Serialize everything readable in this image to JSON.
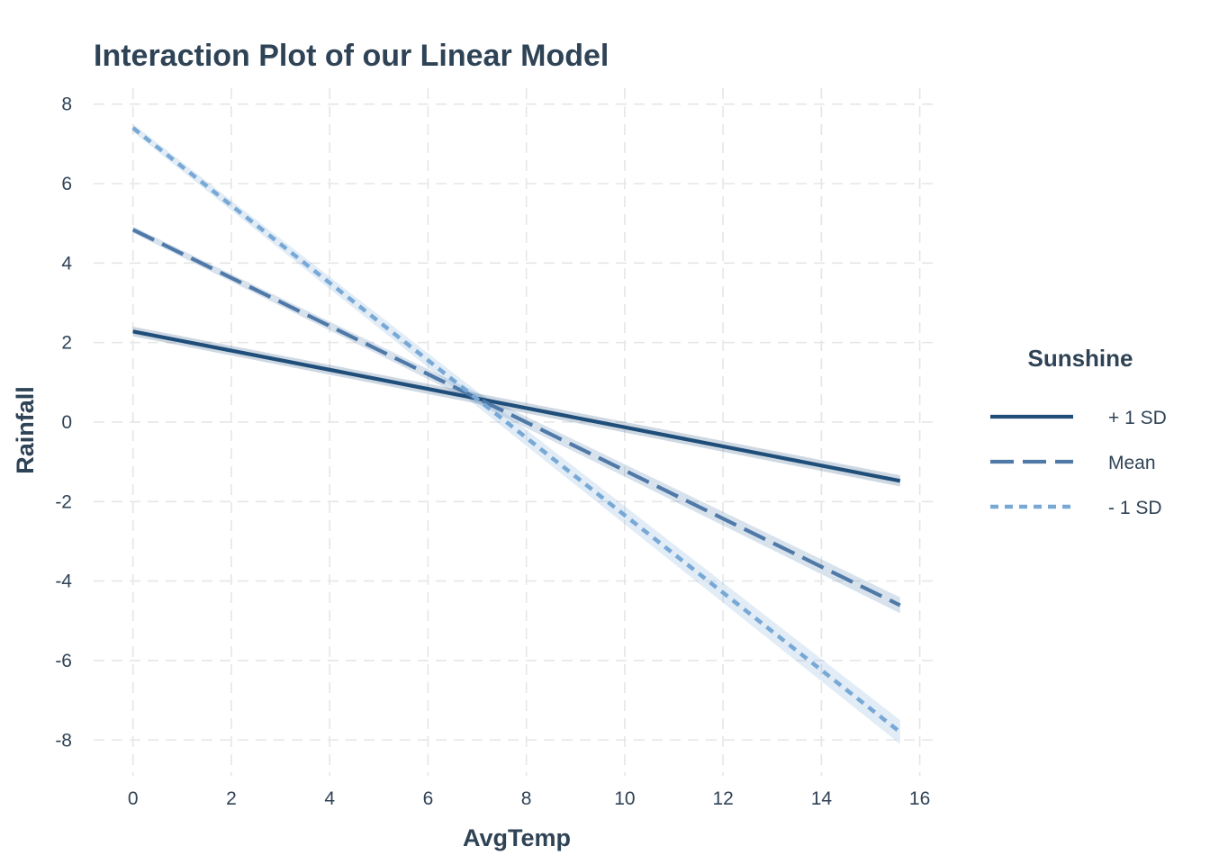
{
  "chart_data": {
    "type": "line",
    "title": "Interaction Plot of our Linear Model",
    "xlabel": "AvgTemp",
    "ylabel": "Rainfall",
    "xlim": [
      -0.8,
      16.3
    ],
    "ylim": [
      -8.9,
      8.4
    ],
    "x_ticks": [
      0,
      2,
      4,
      6,
      8,
      10,
      12,
      14,
      16
    ],
    "y_ticks": [
      -8,
      -6,
      -4,
      -2,
      0,
      2,
      4,
      6,
      8
    ],
    "grid": true,
    "legend": {
      "title": "Sunshine",
      "placement": "right"
    },
    "series": [
      {
        "name": "+ 1 SD",
        "x": [
          0,
          15.6
        ],
        "y": [
          2.28,
          -1.48
        ],
        "ci_half_width": [
          0.12,
          0.14
        ],
        "color": "#1f4e7a",
        "dash": "solid"
      },
      {
        "name": "Mean",
        "x": [
          0,
          15.6
        ],
        "y": [
          4.84,
          -4.61
        ],
        "ci_half_width": [
          0.08,
          0.2
        ],
        "color": "#4f79a8",
        "dash": "dashed"
      },
      {
        "name": "- 1 SD",
        "x": [
          0,
          15.6
        ],
        "y": [
          7.4,
          -7.8
        ],
        "ci_half_width": [
          0.1,
          0.3
        ],
        "color": "#78a9d6",
        "dash": "dotted"
      }
    ]
  }
}
